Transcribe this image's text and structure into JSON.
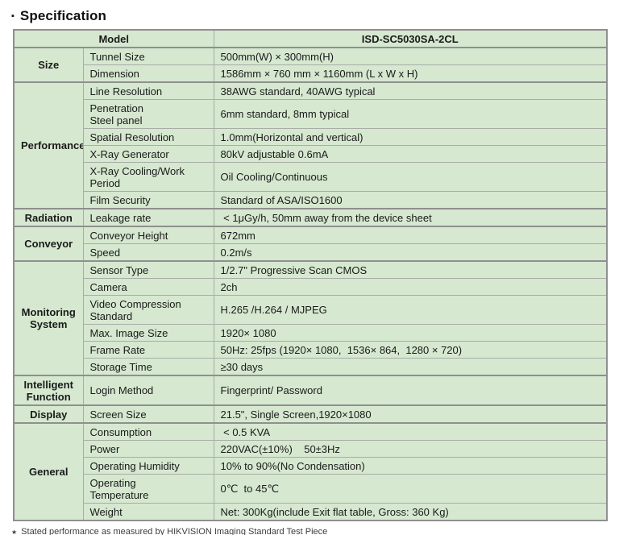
{
  "title": {
    "bullet": "▪",
    "text": "Specification"
  },
  "table": {
    "header": {
      "model_label": "Model",
      "model_value": "ISD-SC5030SA-2CL"
    },
    "sections": [
      {
        "category": "Size",
        "rows": [
          {
            "param": "Tunnel Size",
            "value": "500mm(W) × 300mm(H)"
          },
          {
            "param": "Dimension",
            "value": "1586mm × 760 mm × 1160mm (L x W x H)"
          }
        ]
      },
      {
        "category": "Performance",
        "rows": [
          {
            "param": "Line Resolution",
            "value": "38AWG standard, 40AWG typical"
          },
          {
            "param": "Penetration\nSteel panel",
            "value": "6mm standard, 8mm typical"
          },
          {
            "param": "Spatial Resolution",
            "value": "1.0mm(Horizontal and vertical)"
          },
          {
            "param": "X-Ray Generator",
            "value": "80kV adjustable 0.6mA"
          },
          {
            "param": "X-Ray Cooling/Work\nPeriod",
            "value": "Oil Cooling/Continuous"
          },
          {
            "param": "Film Security",
            "value": "Standard of ASA/ISO1600"
          }
        ]
      },
      {
        "category": "Radiation",
        "rows": [
          {
            "param": "Leakage rate",
            "value": " < 1μGy/h, 50mm away from the device sheet"
          }
        ]
      },
      {
        "category": "Conveyor",
        "rows": [
          {
            "param": "Conveyor Height",
            "value": "672mm"
          },
          {
            "param": "Speed",
            "value": "0.2m/s"
          }
        ]
      },
      {
        "category": "Monitoring\nSystem",
        "rows": [
          {
            "param": "Sensor Type",
            "value": "1/2.7\" Progressive Scan CMOS"
          },
          {
            "param": "Camera",
            "value": "2ch"
          },
          {
            "param": "Video Compression\nStandard",
            "value": "H.265 /H.264 / MJPEG"
          },
          {
            "param": "Max. Image Size",
            "value": "1920× 1080"
          },
          {
            "param": "Frame Rate",
            "value": "50Hz: 25fps (1920× 1080,  1536× 864,  1280 × 720)"
          },
          {
            "param": "Storage Time",
            "value": "≥30 days"
          }
        ]
      },
      {
        "category": "Intelligent\nFunction",
        "rows": [
          {
            "param": "Login Method",
            "value": "Fingerprint/ Password"
          }
        ]
      },
      {
        "category": "Display",
        "rows": [
          {
            "param": "Screen Size",
            "value": "21.5\", Single Screen,1920×1080"
          }
        ]
      },
      {
        "category": "General",
        "rows": [
          {
            "param": "Consumption",
            "value": " < 0.5 KVA"
          },
          {
            "param": "Power",
            "value": "220VAC(±10%)    50±3Hz"
          },
          {
            "param": "Operating Humidity",
            "value": "10% to 90%(No Condensation)"
          },
          {
            "param": "Operating\nTemperature",
            "value": "0℃  to 45℃"
          },
          {
            "param": "Weight",
            "value": "Net: 300Kg(include Exit flat table, Gross: 360 Kg)"
          }
        ]
      }
    ]
  },
  "footnote": {
    "marker": "★",
    "text": "Stated performance as measured by HIKVISION Imaging Standard Test Piece"
  },
  "colors": {
    "cell_background": "#d6e8d0",
    "border_strong": "#8f8f8f",
    "border_light": "#a9aca7",
    "text": "#1a1a1a"
  }
}
